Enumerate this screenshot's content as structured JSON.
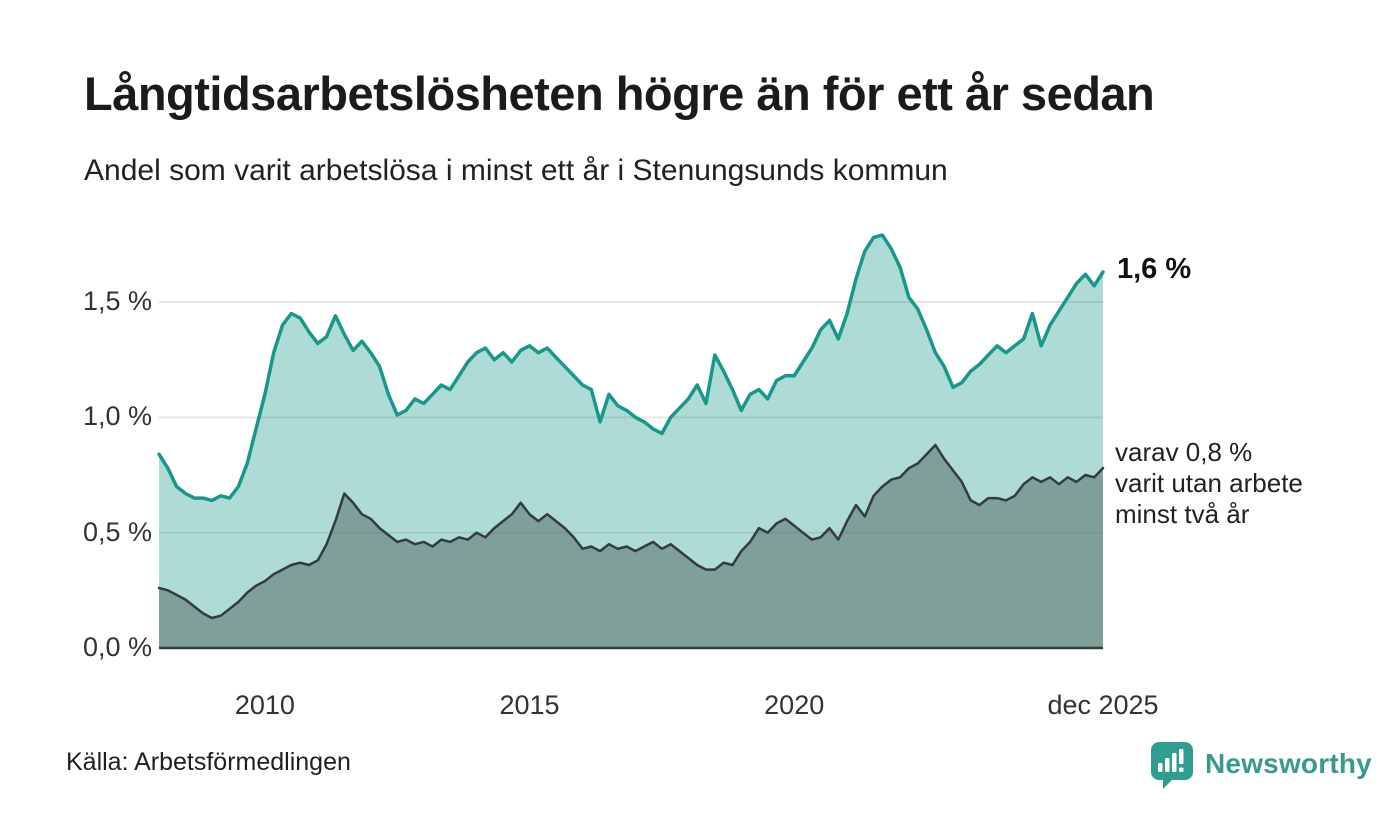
{
  "chart_data": {
    "type": "area",
    "title": "Långtidsarbetslösheten högre än för ett år sedan",
    "subtitle": "Andel som varit arbetslösa i minst ett år i Stenungsunds kommun",
    "grid": true,
    "legend_position": "none",
    "x_start_year": 2008.0,
    "x_step_months": 2,
    "ylim": [
      0,
      1.85
    ],
    "y_ticks": [
      {
        "label": "0,0 %",
        "value": 0.0
      },
      {
        "label": "0,5 %",
        "value": 0.5
      },
      {
        "label": "1,0 %",
        "value": 1.0
      },
      {
        "label": "1,5 %",
        "value": 1.5
      }
    ],
    "x_ticks": [
      {
        "label": "2010",
        "year": 2010
      },
      {
        "label": "2015",
        "year": 2015
      },
      {
        "label": "2020",
        "year": 2020
      },
      {
        "label": "dec 2025",
        "year": 2025.92
      }
    ],
    "series": [
      {
        "name": "Andel arbetslösa minst ett år",
        "line_color": "#17988a",
        "fill_color": "rgba(23,152,138,0.35)",
        "line_width": 3.5,
        "values": [
          0.84,
          0.78,
          0.7,
          0.67,
          0.65,
          0.65,
          0.64,
          0.66,
          0.65,
          0.7,
          0.8,
          0.95,
          1.1,
          1.28,
          1.4,
          1.45,
          1.43,
          1.37,
          1.32,
          1.35,
          1.44,
          1.36,
          1.29,
          1.33,
          1.28,
          1.22,
          1.1,
          1.01,
          1.03,
          1.08,
          1.06,
          1.1,
          1.14,
          1.12,
          1.18,
          1.24,
          1.28,
          1.3,
          1.25,
          1.28,
          1.24,
          1.29,
          1.31,
          1.28,
          1.3,
          1.26,
          1.22,
          1.18,
          1.14,
          1.12,
          0.98,
          1.1,
          1.05,
          1.03,
          1.0,
          0.98,
          0.95,
          0.93,
          1.0,
          1.04,
          1.08,
          1.14,
          1.06,
          1.27,
          1.2,
          1.12,
          1.03,
          1.1,
          1.12,
          1.08,
          1.16,
          1.18,
          1.18,
          1.24,
          1.3,
          1.38,
          1.42,
          1.34,
          1.45,
          1.6,
          1.72,
          1.78,
          1.79,
          1.73,
          1.65,
          1.52,
          1.47,
          1.38,
          1.28,
          1.22,
          1.13,
          1.15,
          1.2,
          1.23,
          1.27,
          1.31,
          1.28,
          1.31,
          1.34,
          1.45,
          1.31,
          1.4,
          1.46,
          1.52,
          1.58,
          1.62,
          1.57,
          1.63
        ]
      },
      {
        "name": "Varav utan arbete minst två år",
        "line_color": "#323d3b",
        "fill_color": "rgba(50,61,59,0.38)",
        "line_width": 2.5,
        "values": [
          0.26,
          0.25,
          0.23,
          0.21,
          0.18,
          0.15,
          0.13,
          0.14,
          0.17,
          0.2,
          0.24,
          0.27,
          0.29,
          0.32,
          0.34,
          0.36,
          0.37,
          0.36,
          0.38,
          0.45,
          0.55,
          0.67,
          0.63,
          0.58,
          0.56,
          0.52,
          0.49,
          0.46,
          0.47,
          0.45,
          0.46,
          0.44,
          0.47,
          0.46,
          0.48,
          0.47,
          0.5,
          0.48,
          0.52,
          0.55,
          0.58,
          0.63,
          0.58,
          0.55,
          0.58,
          0.55,
          0.52,
          0.48,
          0.43,
          0.44,
          0.42,
          0.45,
          0.43,
          0.44,
          0.42,
          0.44,
          0.46,
          0.43,
          0.45,
          0.42,
          0.39,
          0.36,
          0.34,
          0.34,
          0.37,
          0.36,
          0.42,
          0.46,
          0.52,
          0.5,
          0.54,
          0.56,
          0.53,
          0.5,
          0.47,
          0.48,
          0.52,
          0.47,
          0.55,
          0.62,
          0.57,
          0.66,
          0.7,
          0.73,
          0.74,
          0.78,
          0.8,
          0.84,
          0.88,
          0.82,
          0.77,
          0.72,
          0.64,
          0.62,
          0.65,
          0.65,
          0.64,
          0.66,
          0.71,
          0.74,
          0.72,
          0.74,
          0.71,
          0.74,
          0.72,
          0.75,
          0.74,
          0.78
        ]
      }
    ],
    "annotations": [
      {
        "text": "1,6 %"
      },
      {
        "lines": [
          "varav 0,8 %",
          "varit utan arbete",
          "minst två år"
        ]
      }
    ]
  },
  "footer": {
    "source": "Källa: Arbetsförmedlingen",
    "brand": "Newsworthy",
    "brand_color": "#2f9e90"
  }
}
